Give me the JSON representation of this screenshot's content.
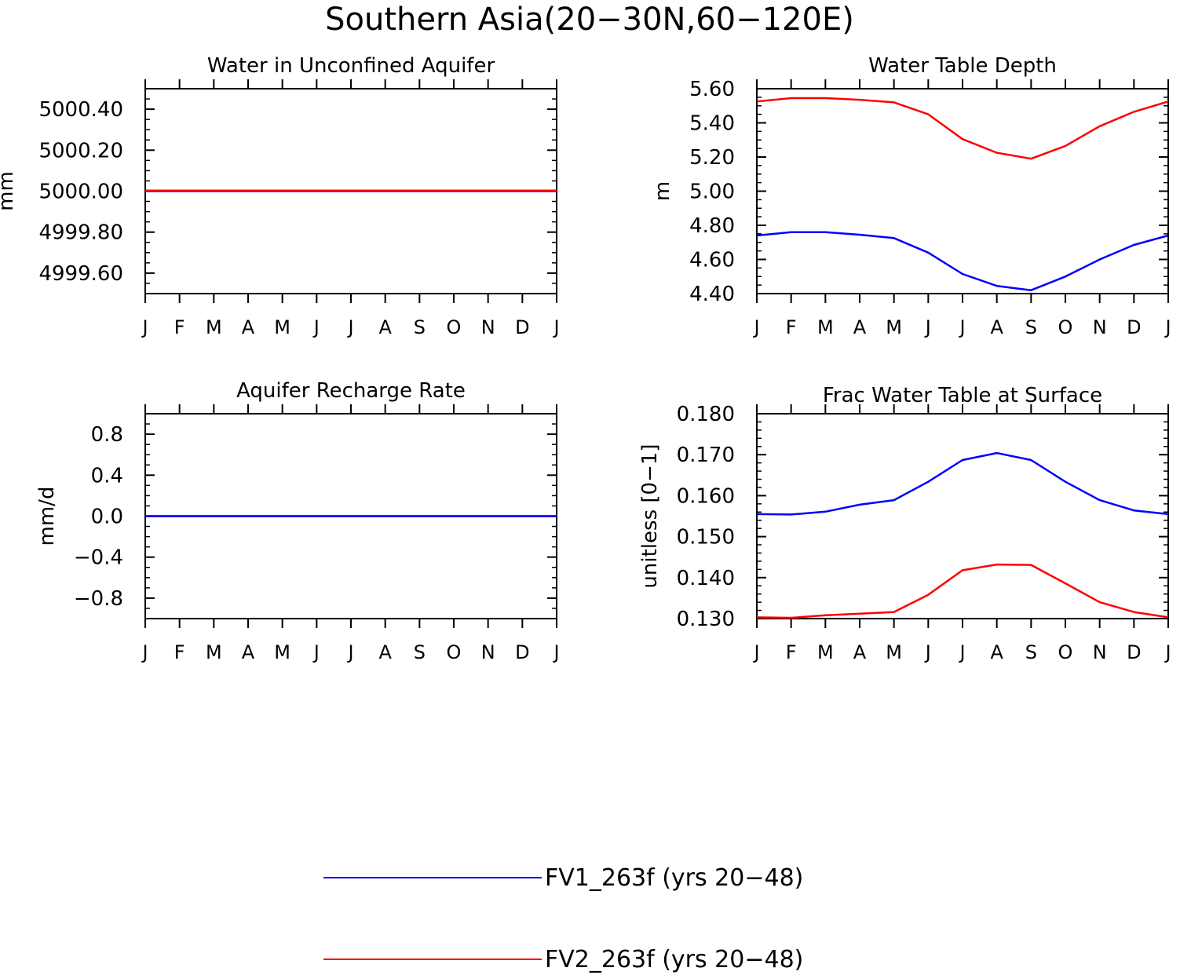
{
  "figure_title": "Southern Asia(20−30N,60−120E)",
  "legend": [
    {
      "label": "FV1_263f (yrs 20−48)",
      "color": "#0000ff"
    },
    {
      "label": "FV2_263f (yrs 20−48)",
      "color": "#ff0000"
    }
  ],
  "chart_data": [
    {
      "id": "water-aquifer",
      "type": "line",
      "title": "Water in Unconfined Aquifer",
      "xlabel": "",
      "ylabel": "mm",
      "categories": [
        "J",
        "F",
        "M",
        "A",
        "M",
        "J",
        "J",
        "A",
        "S",
        "O",
        "N",
        "D",
        "J"
      ],
      "ylim": [
        4999.5,
        5000.5
      ],
      "yticks": [
        4999.6,
        4999.8,
        5000.0,
        5000.2,
        5000.4
      ],
      "ytick_labels": [
        "4999.60",
        "4999.80",
        "5000.00",
        "5000.20",
        "5000.40"
      ],
      "yminor_step": 0.05,
      "series": [
        {
          "name": "FV1_263f (yrs 20−48)",
          "color": "#0000ff",
          "values": [
            5000.0,
            5000.0,
            5000.0,
            5000.0,
            5000.0,
            5000.0,
            5000.0,
            5000.0,
            5000.0,
            5000.0,
            5000.0,
            5000.0,
            5000.0
          ]
        },
        {
          "name": "FV2_263f (yrs 20−48)",
          "color": "#ff0000",
          "values": [
            5000.003,
            5000.003,
            5000.003,
            5000.003,
            5000.003,
            5000.003,
            5000.003,
            5000.003,
            5000.003,
            5000.003,
            5000.003,
            5000.003,
            5000.003
          ]
        }
      ]
    },
    {
      "id": "water-table-depth",
      "type": "line",
      "title": "Water Table Depth",
      "xlabel": "",
      "ylabel": "m",
      "categories": [
        "J",
        "F",
        "M",
        "A",
        "M",
        "J",
        "J",
        "A",
        "S",
        "O",
        "N",
        "D",
        "J"
      ],
      "ylim": [
        4.4,
        5.6
      ],
      "yticks": [
        4.4,
        4.6,
        4.8,
        5.0,
        5.2,
        5.4,
        5.6
      ],
      "ytick_labels": [
        "4.40",
        "4.60",
        "4.80",
        "5.00",
        "5.20",
        "5.40",
        "5.60"
      ],
      "yminor_step": 0.05,
      "series": [
        {
          "name": "FV1_263f (yrs 20−48)",
          "color": "#0000ff",
          "values": [
            4.74,
            4.76,
            4.76,
            4.745,
            4.725,
            4.64,
            4.515,
            4.445,
            4.42,
            4.5,
            4.6,
            4.685,
            4.74
          ]
        },
        {
          "name": "FV2_263f (yrs 20−48)",
          "color": "#ff0000",
          "values": [
            5.525,
            5.545,
            5.545,
            5.535,
            5.52,
            5.45,
            5.305,
            5.225,
            5.19,
            5.265,
            5.38,
            5.465,
            5.525
          ]
        }
      ]
    },
    {
      "id": "recharge-rate",
      "type": "line",
      "title": "Aquifer Recharge Rate",
      "xlabel": "",
      "ylabel": "mm/d",
      "categories": [
        "J",
        "F",
        "M",
        "A",
        "M",
        "J",
        "J",
        "A",
        "S",
        "O",
        "N",
        "D",
        "J"
      ],
      "ylim": [
        -1.0,
        1.0
      ],
      "yticks": [
        -0.8,
        -0.4,
        0.0,
        0.4,
        0.8
      ],
      "ytick_labels": [
        "−0.8",
        "−0.4",
        "0.0",
        "0.4",
        "0.8"
      ],
      "yminor_step": 0.1,
      "series": [
        {
          "name": "FV1_263f (yrs 20−48)",
          "color": "#0000ff",
          "values": [
            0,
            0,
            0,
            0,
            0,
            0,
            0,
            0,
            0,
            0,
            0,
            0,
            0
          ]
        },
        {
          "name": "FV2_263f (yrs 20−48)",
          "color": "#ff0000",
          "values": [
            0,
            0,
            0,
            0,
            0,
            0,
            0,
            0,
            0,
            0,
            0,
            0,
            0
          ]
        }
      ],
      "draw_order": [
        1,
        0
      ]
    },
    {
      "id": "frac-water-table",
      "type": "line",
      "title": "Frac Water Table at Surface",
      "xlabel": "",
      "ylabel": "unitless [0−1]",
      "categories": [
        "J",
        "F",
        "M",
        "A",
        "M",
        "J",
        "J",
        "A",
        "S",
        "O",
        "N",
        "D",
        "J"
      ],
      "ylim": [
        0.13,
        0.18
      ],
      "yticks": [
        0.13,
        0.14,
        0.15,
        0.16,
        0.17,
        0.18
      ],
      "ytick_labels": [
        "0.130",
        "0.140",
        "0.150",
        "0.160",
        "0.170",
        "0.180"
      ],
      "yminor_step": 0.002,
      "series": [
        {
          "name": "FV1_263f (yrs 20−48)",
          "color": "#0000ff",
          "values": [
            0.1555,
            0.1554,
            0.1561,
            0.1578,
            0.1589,
            0.1634,
            0.1687,
            0.1704,
            0.1687,
            0.1634,
            0.1589,
            0.1564,
            0.1555
          ]
        },
        {
          "name": "FV2_263f (yrs 20−48)",
          "color": "#ff0000",
          "values": [
            0.1303,
            0.1302,
            0.1308,
            0.1312,
            0.1316,
            0.1358,
            0.1418,
            0.1432,
            0.1431,
            0.1386,
            0.134,
            0.1316,
            0.1303
          ]
        }
      ]
    }
  ]
}
